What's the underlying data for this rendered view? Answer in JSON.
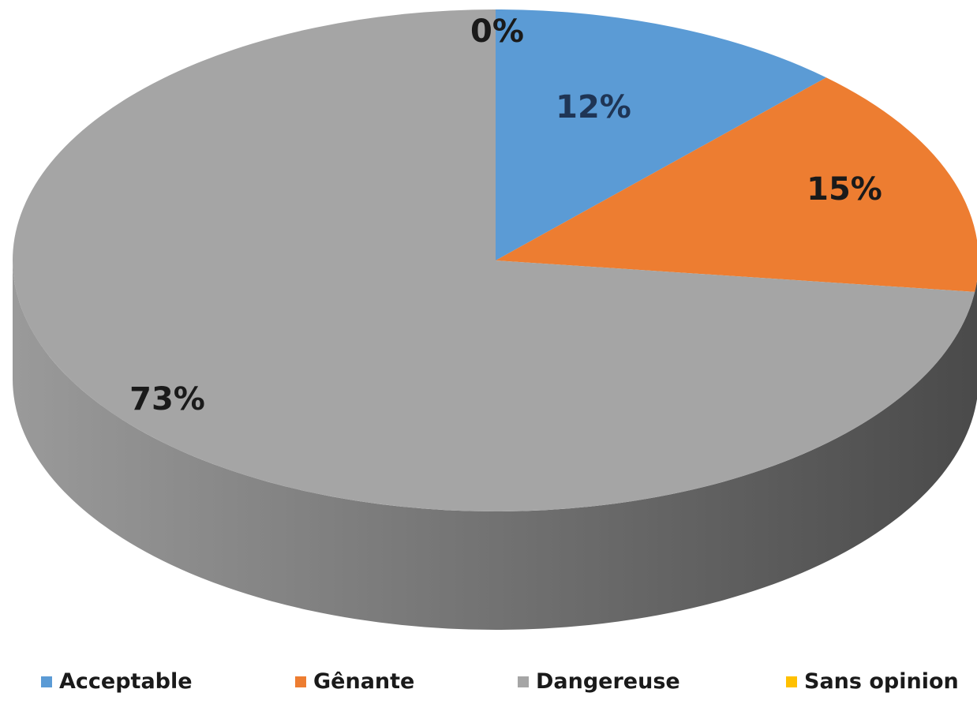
{
  "chart_data": {
    "type": "pie",
    "three_d": true,
    "categories": [
      "Acceptable",
      "Gênante",
      "Dangereuse",
      "Sans opinion"
    ],
    "values": [
      12,
      15,
      73,
      0
    ],
    "data_labels": [
      "12%",
      "15%",
      "73%",
      "0%"
    ],
    "colors": [
      "#5b9bd5",
      "#ed7d31",
      "#a5a5a5",
      "#ffc000"
    ],
    "legend_position": "bottom"
  }
}
